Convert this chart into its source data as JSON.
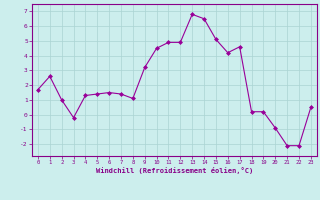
{
  "x": [
    0,
    1,
    2,
    3,
    4,
    5,
    6,
    7,
    8,
    9,
    10,
    11,
    12,
    13,
    14,
    15,
    16,
    17,
    18,
    19,
    20,
    21,
    22,
    23
  ],
  "y": [
    1.7,
    2.6,
    1.0,
    -0.2,
    1.3,
    1.4,
    1.5,
    1.4,
    1.1,
    3.2,
    4.5,
    4.9,
    4.9,
    6.8,
    6.5,
    5.1,
    4.2,
    4.6,
    0.2,
    0.2,
    -0.9,
    -2.1,
    -2.1,
    0.5
  ],
  "line_color": "#990099",
  "marker": "D",
  "marker_size": 2.0,
  "bg_color": "#cceeed",
  "grid_color": "#aad4d3",
  "xlabel": "Windchill (Refroidissement éolien,°C)",
  "ylim": [
    -2.8,
    7.5
  ],
  "xlim": [
    -0.5,
    23.5
  ],
  "yticks": [
    -2,
    -1,
    0,
    1,
    2,
    3,
    4,
    5,
    6,
    7
  ],
  "xticks": [
    0,
    1,
    2,
    3,
    4,
    5,
    6,
    7,
    8,
    9,
    10,
    11,
    12,
    13,
    14,
    15,
    16,
    17,
    18,
    19,
    20,
    21,
    22,
    23
  ],
  "tick_color": "#880088",
  "label_color": "#880088",
  "spine_color": "#880088"
}
